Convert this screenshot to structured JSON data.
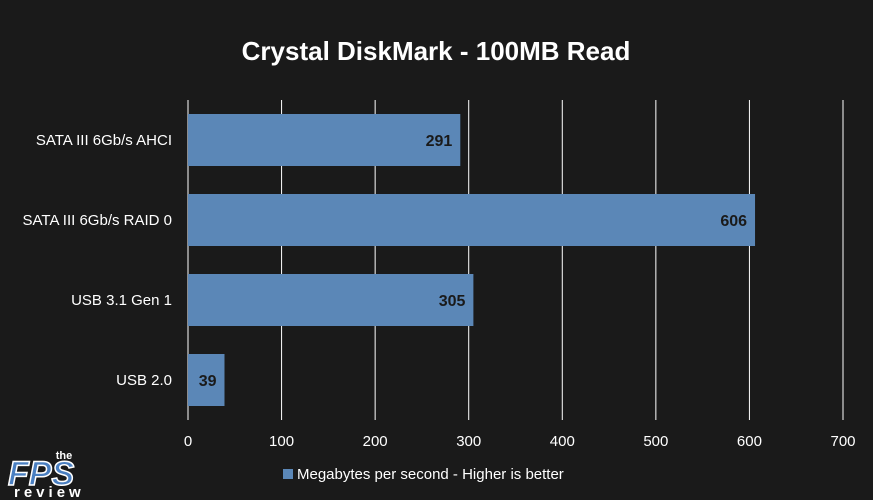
{
  "chart_data": {
    "type": "bar",
    "orientation": "horizontal",
    "title": "Crystal DiskMark - 100MB Read",
    "categories": [
      "SATA III 6Gb/s AHCI",
      "SATA III 6Gb/s RAID 0",
      "USB 3.1 Gen 1",
      "USB 2.0"
    ],
    "series": [
      {
        "name": "Megabytes per second - Higher is better",
        "values": [
          291,
          606,
          305,
          39
        ]
      }
    ],
    "xlim": [
      0,
      700
    ],
    "xticks": [
      0,
      100,
      200,
      300,
      400,
      500,
      600,
      700
    ],
    "grid": "vertical",
    "legend": "bottom",
    "bar_color": "#5b87b7",
    "background_color": "#1a1a1a",
    "gridline_color": "#ffffff"
  },
  "logo": {
    "the": "the",
    "main": "FPS",
    "sub": "review"
  }
}
